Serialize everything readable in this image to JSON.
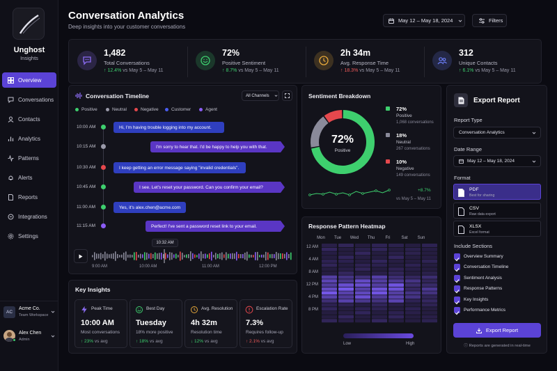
{
  "sidebar": {
    "brand_name": "Unghost",
    "brand_sub": "Insights",
    "items": [
      {
        "label": "Overview",
        "icon": "grid-icon",
        "active": true
      },
      {
        "label": "Conversations",
        "icon": "chat-icon"
      },
      {
        "label": "Contacts",
        "icon": "user-icon"
      },
      {
        "label": "Analytics",
        "icon": "bar-chart-icon"
      },
      {
        "label": "Patterns",
        "icon": "pattern-icon"
      },
      {
        "label": "Alerts",
        "icon": "bell-icon"
      },
      {
        "label": "Reports",
        "icon": "document-icon"
      },
      {
        "label": "Integrations",
        "icon": "plug-icon"
      },
      {
        "label": "Settings",
        "icon": "gear-icon"
      }
    ],
    "workspace": {
      "initials": "AC",
      "name": "Acme Co.",
      "sub": "Team Workspace"
    },
    "user": {
      "name": "Alex Chen",
      "role": "Admin"
    }
  },
  "header": {
    "title": "Conversation Analytics",
    "subtitle": "Deep insights into your customer conversations",
    "date_range": "May 12 – May 18, 2024",
    "filters_label": "Filters"
  },
  "stats": [
    {
      "value": "1,482",
      "label": "Total Conversations",
      "change": "↑ 12.4%",
      "direction": "up",
      "compare": "vs May 5 – May 11",
      "icon": "chat-bubble-icon",
      "color": "#8b6cf2"
    },
    {
      "value": "72%",
      "label": "Positive Sentiment",
      "change": "↑ 8.7%",
      "direction": "up",
      "compare": "vs May 5 – May 11",
      "icon": "smile-icon",
      "color": "#3ecf6e"
    },
    {
      "value": "2h 34m",
      "label": "Avg. Response Time",
      "change": "↑ 18.3%",
      "direction": "down",
      "compare": "vs May 5 – May 11",
      "icon": "clock-icon",
      "color": "#e8a93a"
    },
    {
      "value": "312",
      "label": "Unique Contacts",
      "change": "↑ 6.1%",
      "direction": "up",
      "compare": "vs May 5 – May 11",
      "icon": "users-icon",
      "color": "#6a7cf5"
    }
  ],
  "timeline": {
    "title": "Conversation Timeline",
    "channel": "All Channels",
    "legend": [
      {
        "label": "Positive",
        "color": "#3ecf6e"
      },
      {
        "label": "Neutral",
        "color": "#9a9aaa"
      },
      {
        "label": "Negative",
        "color": "#e5484d"
      },
      {
        "label": "Customer",
        "color": "#4a5df0"
      },
      {
        "label": "Agent",
        "color": "#8b5cf6"
      }
    ],
    "messages": [
      {
        "time": "10:00 AM",
        "text": "Hi, I'm having trouble logging into my account.",
        "role": "customer",
        "dot": "#3ecf6e"
      },
      {
        "time": "10:15 AM",
        "text": "I'm sorry to hear that. I'd be happy to help you with that.",
        "role": "agent",
        "dot": "#9a9aaa"
      },
      {
        "time": "10:30 AM",
        "text": "I keep getting an error message saying \"invalid credentials\".",
        "role": "customer",
        "dot": "#e5484d"
      },
      {
        "time": "10:45 AM",
        "text": "I see. Let's reset your password. Can you confirm your email?",
        "role": "agent",
        "dot": "#3ecf6e"
      },
      {
        "time": "11:00 AM",
        "text": "Yes, it's alex.chen@acme.com",
        "role": "customer",
        "dot": "#3ecf6e"
      },
      {
        "time": "11:15 AM",
        "text": "Perfect! I've sent a password reset link to your email.",
        "role": "agent",
        "dot": "#8b5cf6"
      }
    ],
    "playhead": "10:32 AM",
    "axis": [
      "9:00 AM",
      "10:00 AM",
      "11:00 AM",
      "12:00 PM"
    ]
  },
  "sentiment": {
    "title": "Sentiment Breakdown",
    "center_value": "72%",
    "center_label": "Positive",
    "rows": [
      {
        "pct": "72%",
        "name": "Positive",
        "count": "1,068 conversations",
        "color": "#3ecf6e",
        "value": 72
      },
      {
        "pct": "18%",
        "name": "Neutral",
        "count": "267 conversations",
        "color": "#8a8a9a",
        "value": 18
      },
      {
        "pct": "10%",
        "name": "Negative",
        "count": "149 conversations",
        "color": "#e5484d",
        "value": 10
      }
    ],
    "trend_change": "+8.7%",
    "trend_compare": "vs May 5 – May 11"
  },
  "heatmap": {
    "title": "Response Pattern Heatmap",
    "days": [
      "Mon",
      "Tue",
      "Wed",
      "Thu",
      "Fri",
      "Sat",
      "Sun"
    ],
    "times": [
      "12 AM",
      "4 AM",
      "8 AM",
      "12 PM",
      "4 PM",
      "8 PM"
    ],
    "low": "Low",
    "high": "High"
  },
  "insights": {
    "title": "Key Insights",
    "cards": [
      {
        "title": "Peak Time",
        "value": "10:00 AM",
        "sub": "Most conversations",
        "change": "↑ 23%",
        "compare": "vs avg",
        "icon": "bolt-icon",
        "dir": "up",
        "color": "#8b6cf2"
      },
      {
        "title": "Best Day",
        "value": "Tuesday",
        "sub": "18% more positive",
        "change": "↑ 18%",
        "compare": "vs avg",
        "icon": "smile-icon",
        "dir": "up",
        "color": "#3ecf6e"
      },
      {
        "title": "Avg. Resolution",
        "value": "4h 32m",
        "sub": "Resolution time",
        "change": "↓ 12%",
        "compare": "vs avg",
        "icon": "clock-icon",
        "dir": "up",
        "color": "#e8a93a"
      },
      {
        "title": "Escalation Rate",
        "value": "7.3%",
        "sub": "Requires follow-up",
        "change": "↑ 2.1%",
        "compare": "vs avg",
        "icon": "alert-icon",
        "dir": "down",
        "color": "#e5484d"
      }
    ]
  },
  "export": {
    "title": "Export Report",
    "report_type_label": "Report Type",
    "report_type": "Conversation Analytics",
    "date_range_label": "Date Range",
    "date_range": "May 12 – May 18, 2024",
    "format_label": "Format",
    "formats": [
      {
        "name": "PDF",
        "desc": "Best for sharing",
        "selected": true
      },
      {
        "name": "CSV",
        "desc": "Raw data export"
      },
      {
        "name": "XLSX",
        "desc": "Excel format"
      }
    ],
    "sections_label": "Include Sections",
    "sections": [
      "Overview Summary",
      "Conversation Timeline",
      "Sentiment Analysis",
      "Response Patterns",
      "Key Insights",
      "Performance Metrics"
    ],
    "button": "Export Report",
    "footnote": "Reports are generated in real-time"
  },
  "colors": {
    "accent": "#5b43d6",
    "positive": "#3ecf6e",
    "negative": "#e5484d"
  }
}
